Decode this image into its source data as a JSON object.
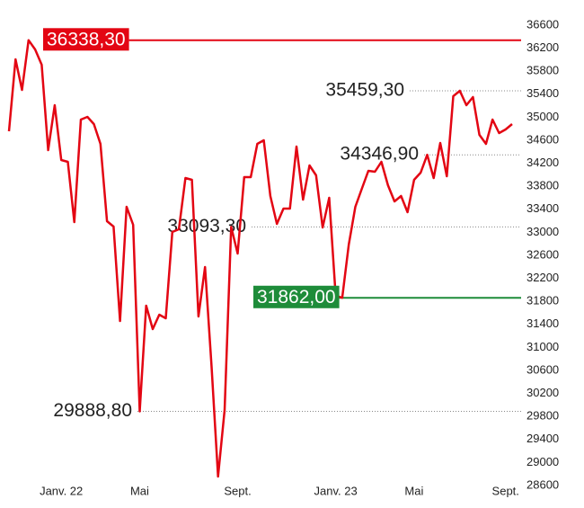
{
  "chart_data": {
    "type": "line",
    "categories": [
      null,
      null,
      null,
      null,
      null,
      null,
      null,
      null,
      "Janv. 22",
      null,
      null,
      null,
      null,
      null,
      null,
      null,
      null,
      null,
      null,
      null,
      "Mai",
      null,
      null,
      null,
      null,
      null,
      null,
      null,
      null,
      null,
      null,
      null,
      null,
      null,
      null,
      "Sept.",
      null,
      null,
      null,
      null,
      null,
      null,
      null,
      null,
      null,
      null,
      null,
      null,
      null,
      null,
      "Janv. 23",
      null,
      null,
      null,
      null,
      null,
      null,
      null,
      null,
      null,
      null,
      null,
      "Mai",
      null,
      null,
      null,
      null,
      null,
      null,
      null,
      null,
      null,
      null,
      null,
      null,
      null,
      "Sept.",
      null
    ],
    "series": [
      {
        "color": "#e30613",
        "values": [
          34756,
          36006,
          35475,
          36338.3,
          36178,
          35912,
          34428,
          35209,
          34256,
          34225,
          33178,
          34959,
          35006,
          34881,
          34537,
          33194,
          33100,
          31459,
          33444,
          33131,
          29888.8,
          31725,
          31319,
          31569,
          31506,
          33006,
          33053,
          33944,
          33912,
          31537,
          32397,
          30662,
          28756,
          29912,
          33093.3,
          32631,
          33959,
          33959,
          34537,
          34600,
          33631,
          33147,
          33412,
          33412,
          34491,
          33569,
          34162,
          33991,
          33084,
          33600,
          31900,
          31862,
          32787,
          33444,
          33756,
          34069,
          34053,
          34225,
          33819,
          33537,
          33631,
          33350,
          33912,
          34037,
          34346.9,
          33944,
          34553,
          33975,
          35366,
          35459.3,
          35209,
          35350,
          34694,
          34537,
          34959,
          34725,
          34787,
          34881
        ]
      }
    ],
    "ylim": [
      28600,
      36600
    ],
    "yticks": [
      28600,
      29000,
      29400,
      29800,
      30200,
      30600,
      31000,
      31400,
      31800,
      32200,
      32600,
      33000,
      33400,
      33800,
      34200,
      34600,
      35000,
      35400,
      35800,
      36200,
      36600
    ],
    "annotations": [
      {
        "value": 36338.3,
        "label": "36338,30",
        "style": "box",
        "color": "#e30613"
      },
      {
        "value": 35459.3,
        "label": "35459,30",
        "style": "dotted"
      },
      {
        "value": 34346.9,
        "label": "34346,90",
        "style": "dotted"
      },
      {
        "value": 33093.3,
        "label": "33093,30",
        "style": "dotted"
      },
      {
        "value": 31862,
        "label": "31862,00",
        "style": "box",
        "color": "#1e8c3a"
      },
      {
        "value": 29888.8,
        "label": "29888,80",
        "style": "dotted"
      }
    ]
  }
}
